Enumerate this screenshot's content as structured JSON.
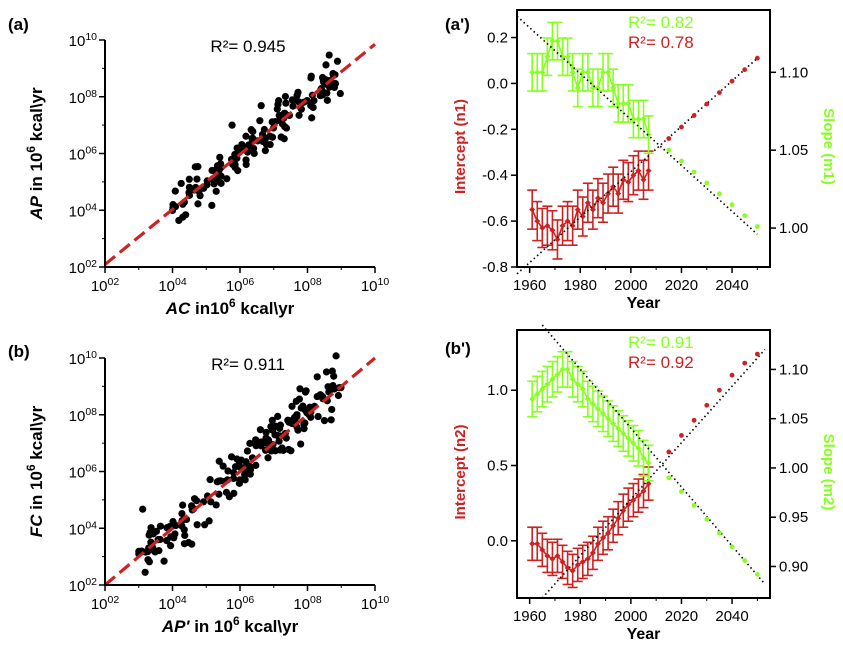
{
  "colors": {
    "axis": "#000000",
    "scatter_point": "#000000",
    "fit_line": "#cc2222",
    "trend_line": "#000000",
    "intercept": "#cc2222",
    "slope": "#88ff22"
  },
  "chart_data": [
    {
      "id": "a",
      "panel_label": "(a)",
      "type": "scatter",
      "title": "R²= 0.945",
      "xlabel_prefix": "AC",
      "xlabel_mid": " in10",
      "xlabel_sup": "6",
      "xlabel_suffix": " kcal\\yr",
      "ylabel_prefix": "AP",
      "ylabel_mid": " in 10",
      "ylabel_sup": "6",
      "ylabel_suffix": " kcal\\yr",
      "x_scale": "log",
      "y_scale": "log",
      "xlim": [
        100,
        10000000000
      ],
      "ylim": [
        100,
        10000000000
      ],
      "x_ticks": [
        100,
        10000,
        1000000,
        100000000,
        10000000000
      ],
      "x_tick_labels": [
        "10",
        "10",
        "10",
        "10",
        "10"
      ],
      "x_tick_sups": [
        "02",
        "04",
        "06",
        "08",
        "10"
      ],
      "y_ticks": [
        100,
        10000,
        1000000,
        100000000,
        10000000000
      ],
      "y_tick_labels": [
        "10",
        "10",
        "10",
        "10",
        "10"
      ],
      "y_tick_sups": [
        "02",
        "04",
        "06",
        "08",
        "10"
      ],
      "fit_line": {
        "style": "dashed",
        "slope_log": 0.97,
        "intercept_log": 0.15
      },
      "seed": 7,
      "n_points": 150,
      "x_log_range": [
        4.0,
        9.0
      ],
      "noise": 0.38
    },
    {
      "id": "b",
      "panel_label": "(b)",
      "type": "scatter",
      "title": "R²= 0.911",
      "xlabel_prefix": "AP'",
      "xlabel_mid": " in 10",
      "xlabel_sup": "6",
      "xlabel_suffix": " kcal\\yr",
      "ylabel_prefix": "FC",
      "ylabel_mid": " in 10",
      "ylabel_sup": "6",
      "ylabel_suffix": " kcal\\yr",
      "x_scale": "log",
      "y_scale": "log",
      "xlim": [
        100,
        10000000000
      ],
      "ylim": [
        100,
        10000000000
      ],
      "x_ticks": [
        100,
        10000,
        1000000,
        100000000,
        10000000000
      ],
      "x_tick_labels": [
        "10",
        "10",
        "10",
        "10",
        "10"
      ],
      "x_tick_sups": [
        "02",
        "04",
        "06",
        "08",
        "10"
      ],
      "y_ticks": [
        100,
        10000,
        1000000,
        100000000,
        10000000000
      ],
      "y_tick_labels": [
        "10",
        "10",
        "10",
        "10",
        "10"
      ],
      "y_tick_sups": [
        "02",
        "04",
        "06",
        "08",
        "10"
      ],
      "fit_line": {
        "style": "dashed",
        "slope_log": 1.0,
        "intercept_log": 0.0
      },
      "seed": 13,
      "n_points": 180,
      "x_log_range": [
        3.0,
        9.0
      ],
      "noise": 0.5
    },
    {
      "id": "a-prime",
      "panel_label": "(a')",
      "type": "line",
      "xlabel": "Year",
      "ylabel_left": "Intercept (n1)",
      "ylabel_right": "Slope (m1)",
      "xlim": [
        1955,
        2055
      ],
      "x_ticks": [
        1960,
        1980,
        2000,
        2020,
        2040
      ],
      "ylim_left": [
        -0.8,
        0.32
      ],
      "y_ticks_left": [
        0.2,
        0.0,
        -0.2,
        -0.4,
        -0.6,
        -0.8
      ],
      "y_tick_labels_left": [
        "0.2",
        "0.0",
        "-0.2",
        "-0.4",
        "-0.6",
        "-0.8"
      ],
      "ylim_right": [
        0.975,
        1.14
      ],
      "y_ticks_right": [
        1.1,
        1.05,
        1.0
      ],
      "y_tick_labels_right": [
        "1.10",
        "1.05",
        "1.00"
      ],
      "annotations": [
        {
          "text": "R²= 0.82",
          "series": "slope"
        },
        {
          "text": "R²= 0.78",
          "series": "intercept"
        }
      ],
      "series": [
        {
          "axis": "left",
          "color_key": "intercept",
          "role": "intercept",
          "years": [
            1961,
            1963,
            1965,
            1967,
            1969,
            1971,
            1973,
            1975,
            1977,
            1979,
            1981,
            1983,
            1985,
            1987,
            1989,
            1991,
            1993,
            1995,
            1997,
            1999,
            2001,
            2003,
            2005,
            2007
          ],
          "values": [
            -0.55,
            -0.6,
            -0.63,
            -0.62,
            -0.64,
            -0.68,
            -0.62,
            -0.6,
            -0.62,
            -0.55,
            -0.58,
            -0.52,
            -0.55,
            -0.5,
            -0.52,
            -0.48,
            -0.45,
            -0.48,
            -0.42,
            -0.43,
            -0.4,
            -0.38,
            -0.42,
            -0.38
          ],
          "error": 0.085,
          "projection": {
            "years": [
              2015,
              2020,
              2025,
              2030,
              2035,
              2040,
              2045,
              2050
            ],
            "values": [
              -0.24,
              -0.19,
              -0.14,
              -0.09,
              -0.04,
              0.01,
              0.06,
              0.11
            ]
          },
          "trend": {
            "start": [
              1955,
              -0.83
            ],
            "end": [
              2050,
              0.11
            ]
          }
        },
        {
          "axis": "right",
          "color_key": "slope",
          "role": "slope",
          "years": [
            1961,
            1963,
            1965,
            1967,
            1969,
            1971,
            1973,
            1975,
            1977,
            1979,
            1981,
            1983,
            1985,
            1987,
            1989,
            1991,
            1993,
            1995,
            1997,
            1999,
            2001,
            2003,
            2005,
            2007
          ],
          "values": [
            1.1,
            1.1,
            1.1,
            1.11,
            1.12,
            1.12,
            1.11,
            1.11,
            1.1,
            1.09,
            1.1,
            1.1,
            1.09,
            1.09,
            1.1,
            1.1,
            1.09,
            1.08,
            1.08,
            1.08,
            1.07,
            1.07,
            1.07,
            1.06
          ],
          "error": 0.012,
          "projection": {
            "years": [
              2015,
              2020,
              2025,
              2030,
              2035,
              2040,
              2045,
              2050
            ],
            "values": [
              1.05,
              1.043,
              1.036,
              1.029,
              1.022,
              1.015,
              1.008,
              1.001
            ]
          },
          "trend": {
            "start": [
              1955,
              1.136
            ],
            "end": [
              2050,
              0.996
            ]
          }
        }
      ]
    },
    {
      "id": "b-prime",
      "panel_label": "(b')",
      "type": "line",
      "xlabel": "Year",
      "ylabel_left": "Intercept (n2)",
      "ylabel_right": "Slope (m2)",
      "xlim": [
        1955,
        2055
      ],
      "x_ticks": [
        1960,
        1980,
        2000,
        2020,
        2040
      ],
      "ylim_left": [
        -0.38,
        1.4
      ],
      "y_ticks_left": [
        1.0,
        0.5,
        0.0
      ],
      "y_tick_labels_left": [
        "1.0",
        "0.5",
        "0.0"
      ],
      "ylim_right": [
        0.868,
        1.14
      ],
      "y_ticks_right": [
        1.1,
        1.05,
        1.0,
        0.95,
        0.9
      ],
      "y_tick_labels_right": [
        "1.10",
        "1.05",
        "1.00",
        "0.95",
        "0.90"
      ],
      "annotations": [
        {
          "text": "R²= 0.91",
          "series": "slope"
        },
        {
          "text": "R²= 0.92",
          "series": "intercept"
        }
      ],
      "series": [
        {
          "axis": "left",
          "color_key": "intercept",
          "role": "intercept",
          "years": [
            1961,
            1963,
            1965,
            1967,
            1969,
            1971,
            1973,
            1975,
            1977,
            1979,
            1981,
            1983,
            1985,
            1987,
            1989,
            1991,
            1993,
            1995,
            1997,
            1999,
            2001,
            2003,
            2005,
            2007
          ],
          "values": [
            -0.02,
            -0.02,
            -0.06,
            -0.1,
            -0.12,
            -0.1,
            -0.14,
            -0.18,
            -0.2,
            -0.16,
            -0.14,
            -0.12,
            -0.08,
            -0.02,
            0.02,
            0.05,
            0.1,
            0.15,
            0.2,
            0.24,
            0.27,
            0.3,
            0.33,
            0.38
          ],
          "error": 0.11,
          "projection": {
            "years": [
              2015,
              2020,
              2025,
              2030,
              2035,
              2040,
              2045,
              2050
            ],
            "values": [
              0.59,
              0.7,
              0.8,
              0.9,
              1.0,
              1.1,
              1.18,
              1.24
            ]
          },
          "trend": {
            "start": [
              1965,
              -0.38
            ],
            "end": [
              2053,
              1.27
            ]
          }
        },
        {
          "axis": "right",
          "color_key": "slope",
          "role": "slope",
          "years": [
            1961,
            1963,
            1965,
            1967,
            1969,
            1971,
            1973,
            1975,
            1977,
            1979,
            1981,
            1983,
            1985,
            1987,
            1989,
            1991,
            1993,
            1995,
            1997,
            1999,
            2001,
            2003,
            2005,
            2007
          ],
          "values": [
            1.07,
            1.075,
            1.08,
            1.085,
            1.09,
            1.095,
            1.1,
            1.1,
            1.09,
            1.085,
            1.08,
            1.07,
            1.065,
            1.06,
            1.055,
            1.05,
            1.045,
            1.04,
            1.035,
            1.03,
            1.025,
            1.02,
            1.01,
            1.005
          ],
          "error": 0.018,
          "projection": {
            "years": [
              2015,
              2020,
              2025,
              2030,
              2035,
              2040,
              2045,
              2050
            ],
            "values": [
              0.99,
              0.976,
              0.962,
              0.948,
              0.934,
              0.92,
              0.906,
              0.892
            ]
          },
          "trend": {
            "start": [
              1965,
              1.145
            ],
            "end": [
              2053,
              0.882
            ]
          }
        }
      ]
    }
  ]
}
